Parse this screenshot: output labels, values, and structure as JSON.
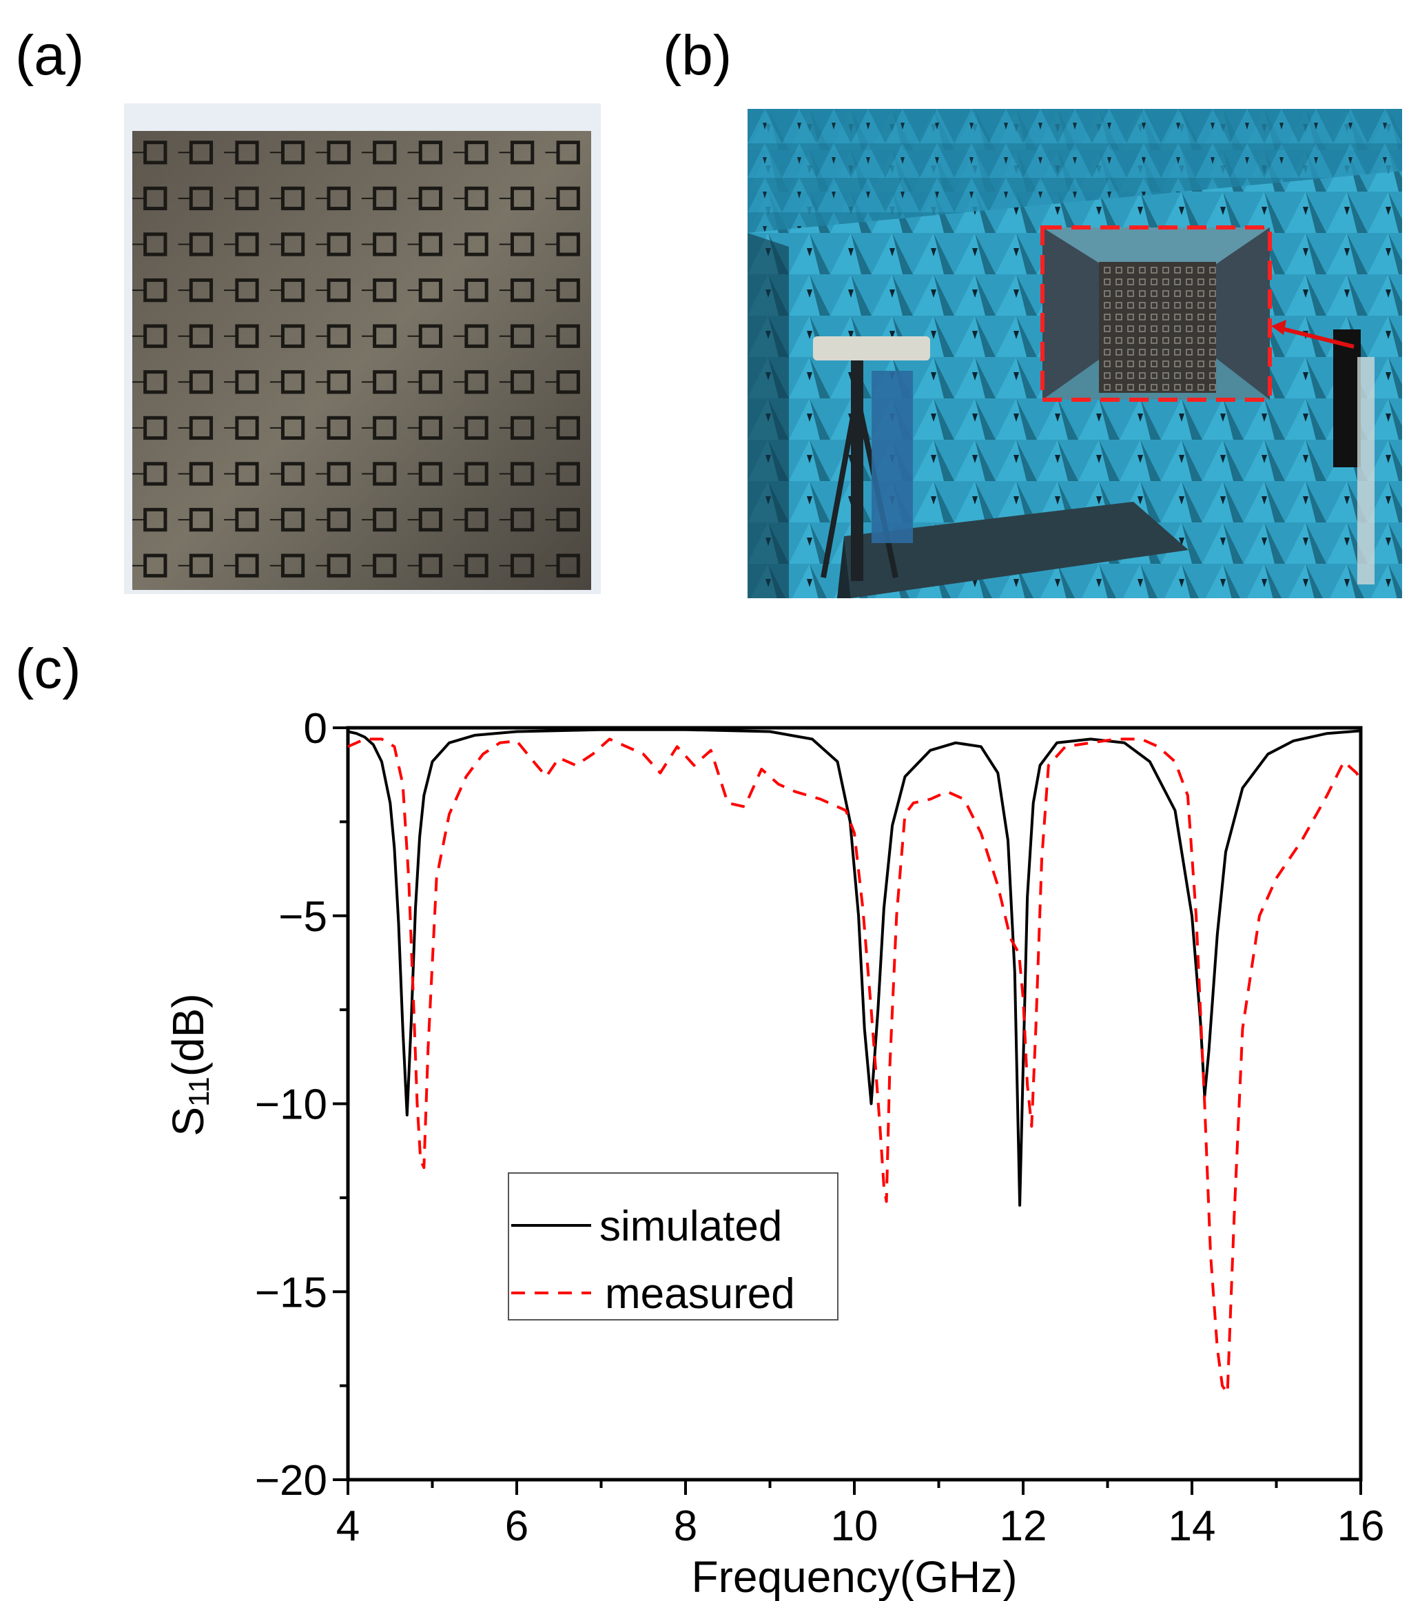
{
  "panels": {
    "a": {
      "label": "(a)"
    },
    "b": {
      "label": "(b)"
    },
    "c": {
      "label": "(c)"
    }
  },
  "colors": {
    "simulated": "#000000",
    "measured": "#ff0000",
    "chamber": "#2a8fb0",
    "board": "#4a4640"
  },
  "chart_data": {
    "type": "line",
    "xlabel": "Frequency(GHz)",
    "ylabel_main": "S",
    "ylabel_sub": "11",
    "ylabel_unit": "(dB)",
    "xlim": [
      4,
      16
    ],
    "ylim": [
      -20,
      0
    ],
    "xticks": [
      4,
      6,
      8,
      10,
      12,
      14,
      16
    ],
    "yticks": [
      0,
      -5,
      -10,
      -15,
      -20
    ],
    "ytick_labels": [
      "0",
      "−5",
      "−10",
      "−15",
      "−20"
    ],
    "grid": false,
    "legend_position": "center-left",
    "series": [
      {
        "name": "simulated",
        "style": "solid",
        "x": [
          4.0,
          4.1,
          4.2,
          4.3,
          4.4,
          4.5,
          4.55,
          4.6,
          4.65,
          4.7,
          4.75,
          4.8,
          4.85,
          4.9,
          5.0,
          5.2,
          5.5,
          6.0,
          7.0,
          8.0,
          9.0,
          9.5,
          9.8,
          9.95,
          10.05,
          10.12,
          10.2,
          10.28,
          10.35,
          10.45,
          10.6,
          10.9,
          11.2,
          11.5,
          11.7,
          11.82,
          11.9,
          11.96,
          12.0,
          12.05,
          12.12,
          12.2,
          12.4,
          12.8,
          13.2,
          13.5,
          13.8,
          14.0,
          14.1,
          14.15,
          14.2,
          14.3,
          14.4,
          14.6,
          14.9,
          15.2,
          15.6,
          16.0
        ],
        "y": [
          -0.1,
          -0.15,
          -0.25,
          -0.45,
          -0.9,
          -2.0,
          -3.2,
          -5.2,
          -8.0,
          -10.3,
          -7.8,
          -4.8,
          -2.9,
          -1.8,
          -0.9,
          -0.4,
          -0.2,
          -0.1,
          -0.05,
          -0.05,
          -0.1,
          -0.3,
          -0.9,
          -2.5,
          -5.0,
          -8.0,
          -10.0,
          -7.5,
          -4.8,
          -2.6,
          -1.3,
          -0.6,
          -0.4,
          -0.5,
          -1.2,
          -3.0,
          -6.5,
          -12.7,
          -9.0,
          -4.5,
          -2.0,
          -1.0,
          -0.4,
          -0.3,
          -0.4,
          -0.9,
          -2.2,
          -5.0,
          -7.8,
          -9.8,
          -8.6,
          -5.5,
          -3.3,
          -1.6,
          -0.7,
          -0.35,
          -0.15,
          -0.08
        ]
      },
      {
        "name": "measured",
        "style": "dashed",
        "x": [
          4.0,
          4.2,
          4.4,
          4.55,
          4.65,
          4.72,
          4.78,
          4.82,
          4.86,
          4.9,
          4.95,
          5.05,
          5.2,
          5.4,
          5.6,
          5.8,
          6.0,
          6.2,
          6.35,
          6.5,
          6.7,
          6.9,
          7.1,
          7.3,
          7.5,
          7.7,
          7.9,
          8.1,
          8.3,
          8.5,
          8.7,
          8.9,
          9.1,
          9.3,
          9.6,
          9.9,
          10.0,
          10.1,
          10.2,
          10.3,
          10.35,
          10.38,
          10.42,
          10.5,
          10.6,
          10.7,
          10.9,
          11.1,
          11.3,
          11.5,
          11.7,
          11.85,
          11.95,
          12.0,
          12.05,
          12.1,
          12.15,
          12.22,
          12.3,
          12.5,
          12.8,
          13.1,
          13.4,
          13.6,
          13.8,
          13.95,
          14.05,
          14.15,
          14.22,
          14.3,
          14.36,
          14.42,
          14.5,
          14.6,
          14.8,
          15.0,
          15.3,
          15.6,
          15.8,
          15.95,
          16.0
        ],
        "y": [
          -0.5,
          -0.3,
          -0.3,
          -0.5,
          -1.5,
          -4.0,
          -7.5,
          -10.0,
          -11.5,
          -11.7,
          -8.5,
          -4.0,
          -2.3,
          -1.3,
          -0.7,
          -0.4,
          -0.35,
          -0.9,
          -1.3,
          -0.8,
          -1.0,
          -0.7,
          -0.3,
          -0.5,
          -0.7,
          -1.2,
          -0.5,
          -1.0,
          -0.6,
          -2.0,
          -2.1,
          -1.1,
          -1.5,
          -1.7,
          -1.9,
          -2.2,
          -2.8,
          -4.8,
          -7.5,
          -10.5,
          -12.2,
          -12.6,
          -9.0,
          -5.0,
          -2.3,
          -2.0,
          -1.9,
          -1.7,
          -1.9,
          -2.8,
          -4.2,
          -5.6,
          -6.0,
          -7.2,
          -9.5,
          -10.6,
          -8.0,
          -3.5,
          -1.0,
          -0.5,
          -0.4,
          -0.3,
          -0.3,
          -0.5,
          -0.9,
          -1.8,
          -5.0,
          -10.0,
          -14.0,
          -16.5,
          -17.5,
          -17.7,
          -13.0,
          -8.0,
          -5.0,
          -4.0,
          -3.0,
          -1.8,
          -0.9,
          -1.2,
          -1.4
        ]
      }
    ]
  }
}
